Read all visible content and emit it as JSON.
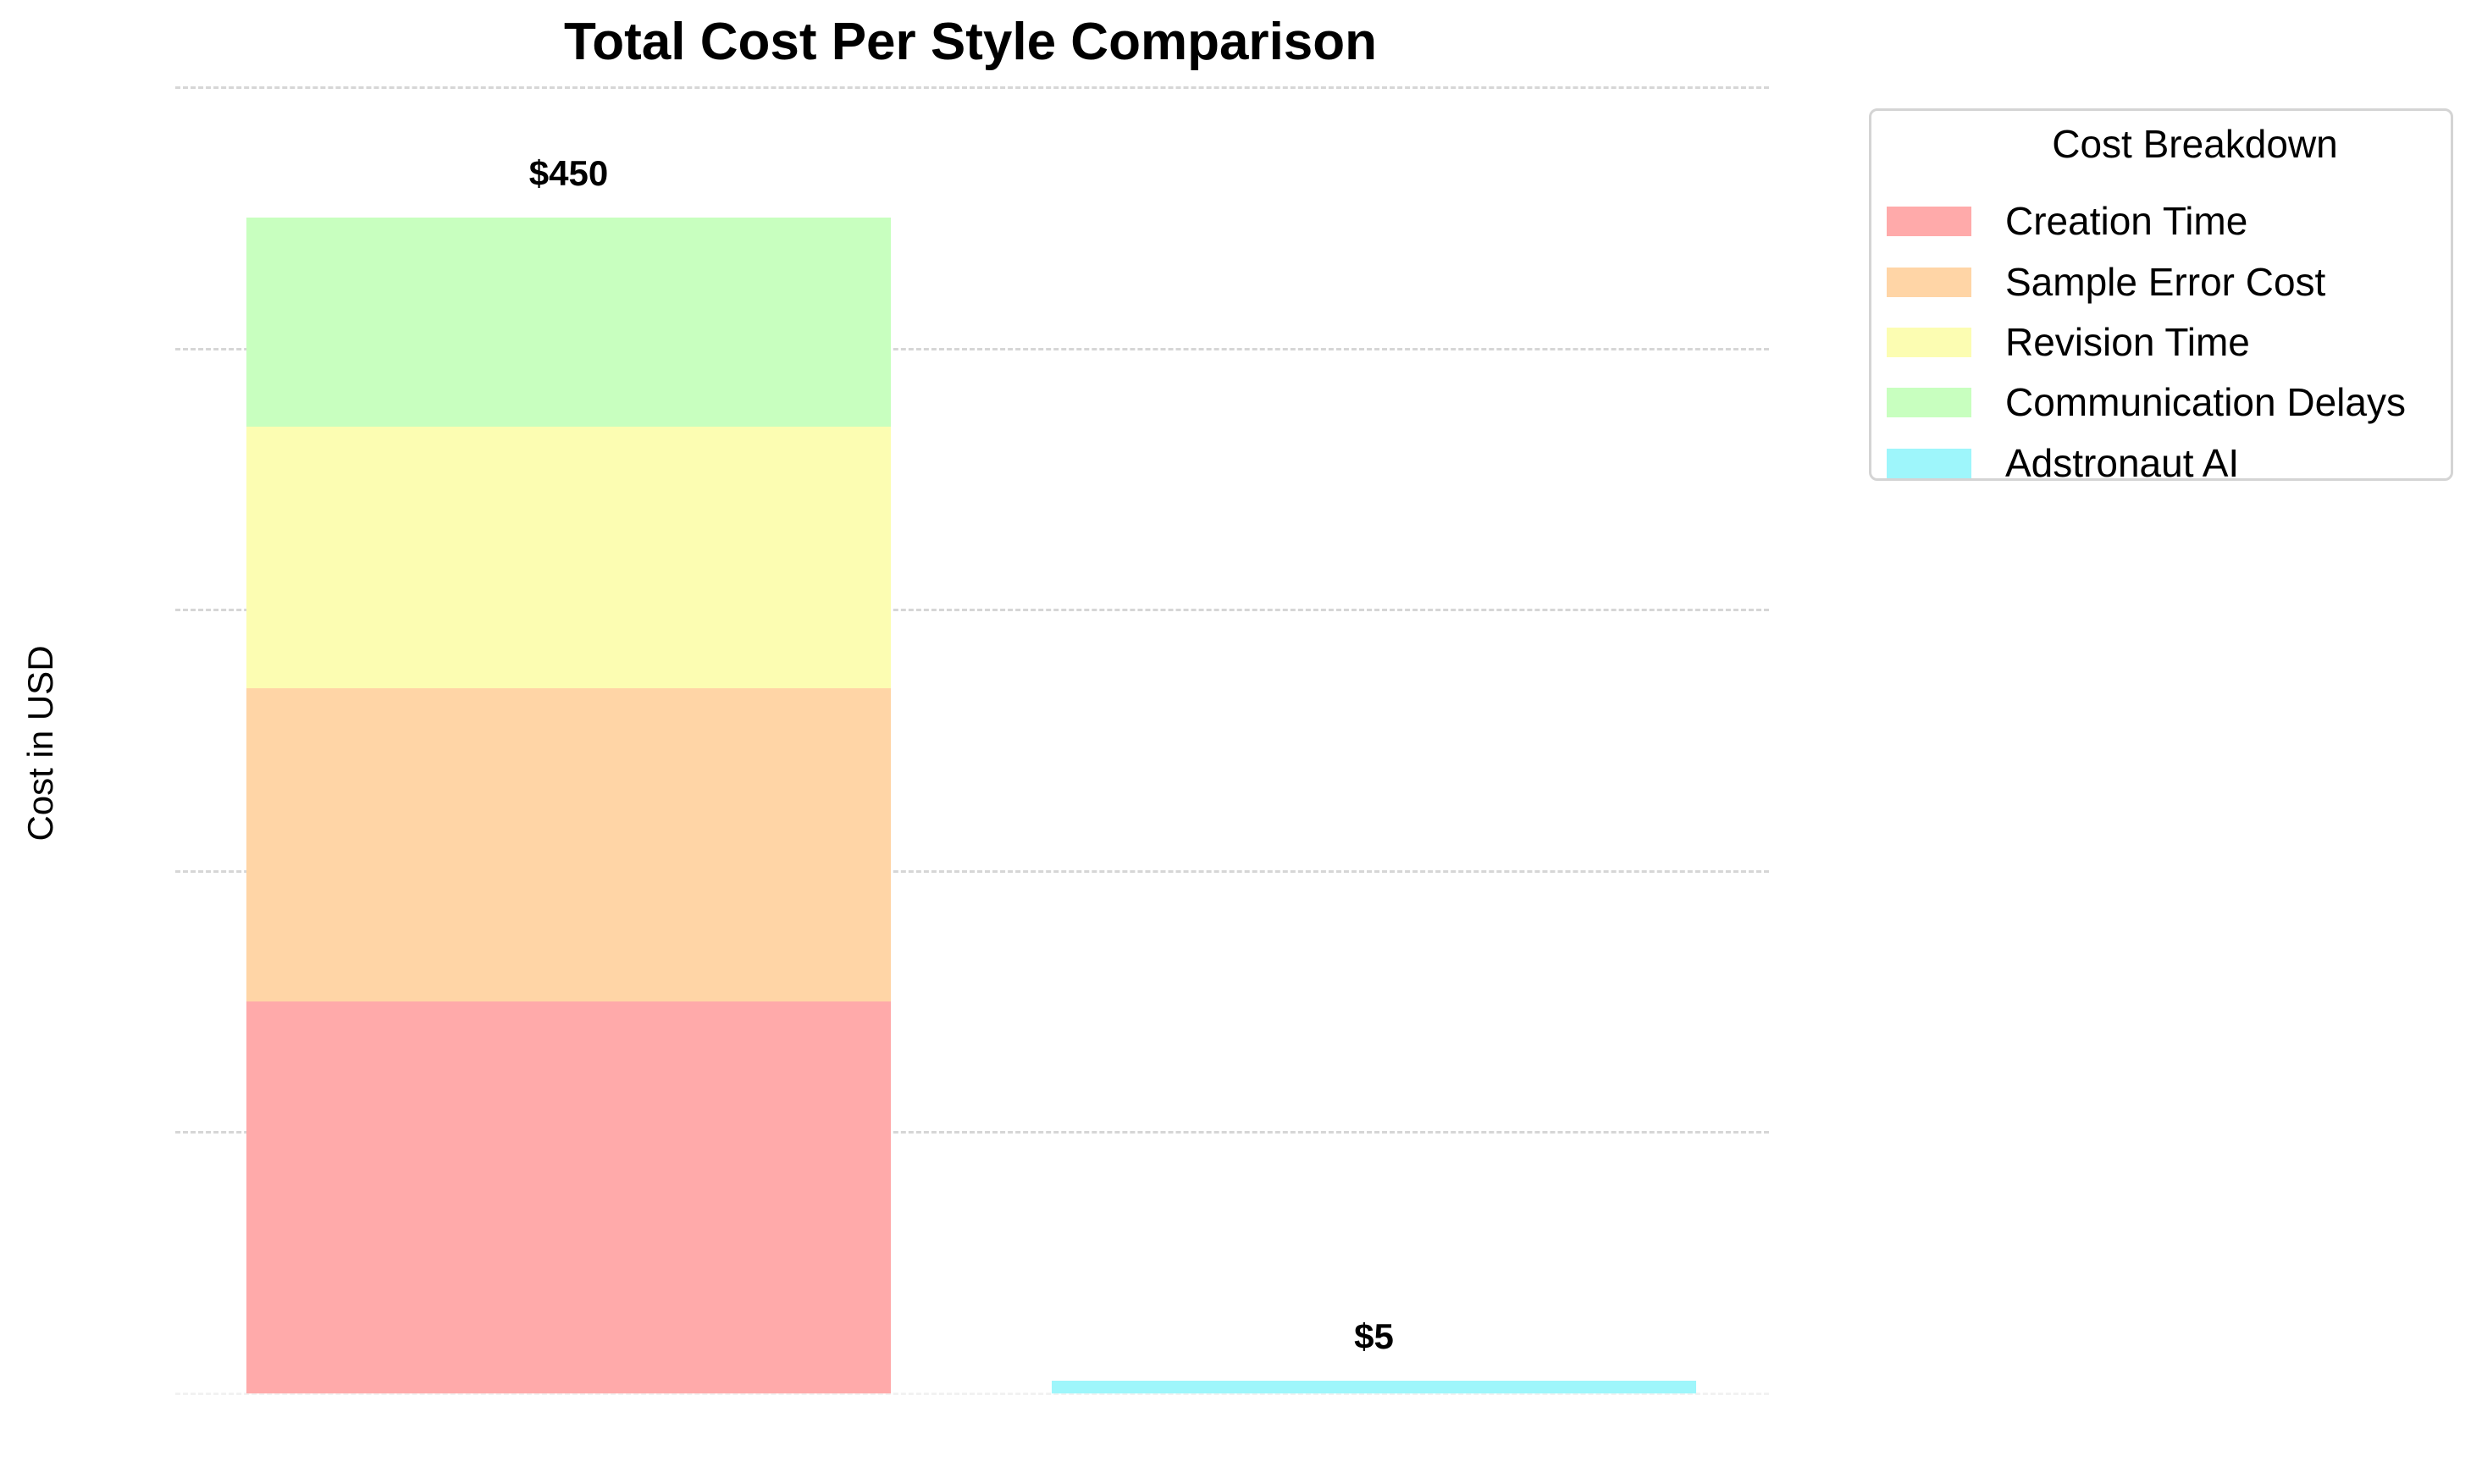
{
  "chart_data": {
    "type": "bar",
    "stacked": true,
    "title": "Total Cost Per Style Comparison",
    "xlabel": "",
    "ylabel": "Cost in USD",
    "ylim": [
      0,
      500
    ],
    "grid": {
      "y": true,
      "style": "dashed",
      "ticks": [
        0,
        100,
        200,
        300,
        400,
        500
      ]
    },
    "categories": [
      "",
      ""
    ],
    "series": [
      {
        "name": "Creation Time",
        "color": "#ffaaaa",
        "values": [
          150,
          0
        ]
      },
      {
        "name": "Sample Error Cost",
        "color": "#ffd5a6",
        "values": [
          120,
          0
        ]
      },
      {
        "name": "Revision Time",
        "color": "#fcfdb2",
        "values": [
          100,
          0
        ]
      },
      {
        "name": "Communication Delays",
        "color": "#c8ffbf",
        "values": [
          80,
          0
        ]
      },
      {
        "name": "Adstronaut AI",
        "color": "#9ef6fb",
        "values": [
          0,
          5
        ]
      }
    ],
    "totals": [
      450,
      5
    ],
    "value_labels": [
      "$450",
      "$5"
    ],
    "legend": {
      "title": "Cost Breakdown",
      "position": "upper right, outside plot"
    }
  }
}
